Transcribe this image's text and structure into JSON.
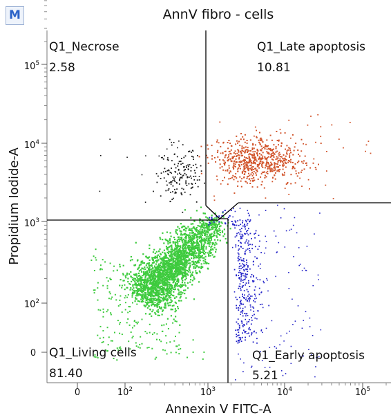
{
  "badge": "M",
  "chart_data": {
    "type": "scatter",
    "title": "AnnV fibro - cells",
    "xlabel": "Annexin V FITC-A",
    "ylabel": "Propidium Iodide-A",
    "x_scale": "biexponential",
    "y_scale": "biexponential",
    "x_ticks": [
      {
        "base": "0",
        "exp": ""
      },
      {
        "base": "10",
        "exp": "2"
      },
      {
        "base": "10",
        "exp": "3"
      },
      {
        "base": "10",
        "exp": "4"
      },
      {
        "base": "10",
        "exp": "5"
      }
    ],
    "y_ticks": [
      {
        "base": "0",
        "exp": ""
      },
      {
        "base": "10",
        "exp": "2"
      },
      {
        "base": "10",
        "exp": "3"
      },
      {
        "base": "10",
        "exp": "4"
      },
      {
        "base": "10",
        "exp": "5"
      }
    ],
    "quadrants": [
      {
        "name": "Q1_Necrose",
        "value": "2.58",
        "color": "#1a1a1a"
      },
      {
        "name": "Q1_Late apoptosis",
        "value": "10.81",
        "color": "#d2552c"
      },
      {
        "name": "Q1_Living cells",
        "value": "81.40",
        "color": "#3ecb3e"
      },
      {
        "name": "Q1_Early apoptosis",
        "value": "5.21",
        "color": "#2323c8"
      }
    ],
    "gate_color": "#000000",
    "grid": false
  }
}
